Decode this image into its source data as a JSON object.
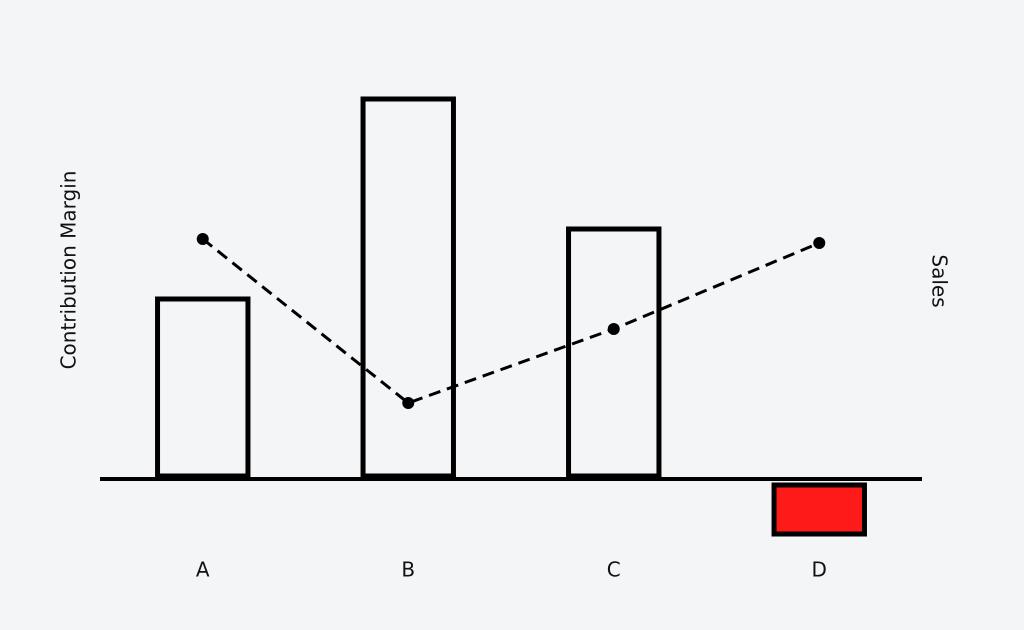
{
  "chart_data": {
    "type": "bar",
    "ylabel": "Contribution Margin",
    "y2label": "Sales",
    "categories": [
      "A",
      "B",
      "C",
      "D"
    ],
    "series": [
      {
        "type": "bar",
        "color": "#000000",
        "values": [
          180,
          380,
          250,
          -55
        ]
      },
      {
        "type": "line",
        "axis": "y2",
        "color": "#000000",
        "dashed": true,
        "values": [
          60,
          19,
          37.5,
          59
        ]
      }
    ],
    "negative_color": "#ff1a1a",
    "ylim": [
      -80,
      400
    ],
    "y2lim": [
      -20,
      100
    ]
  }
}
